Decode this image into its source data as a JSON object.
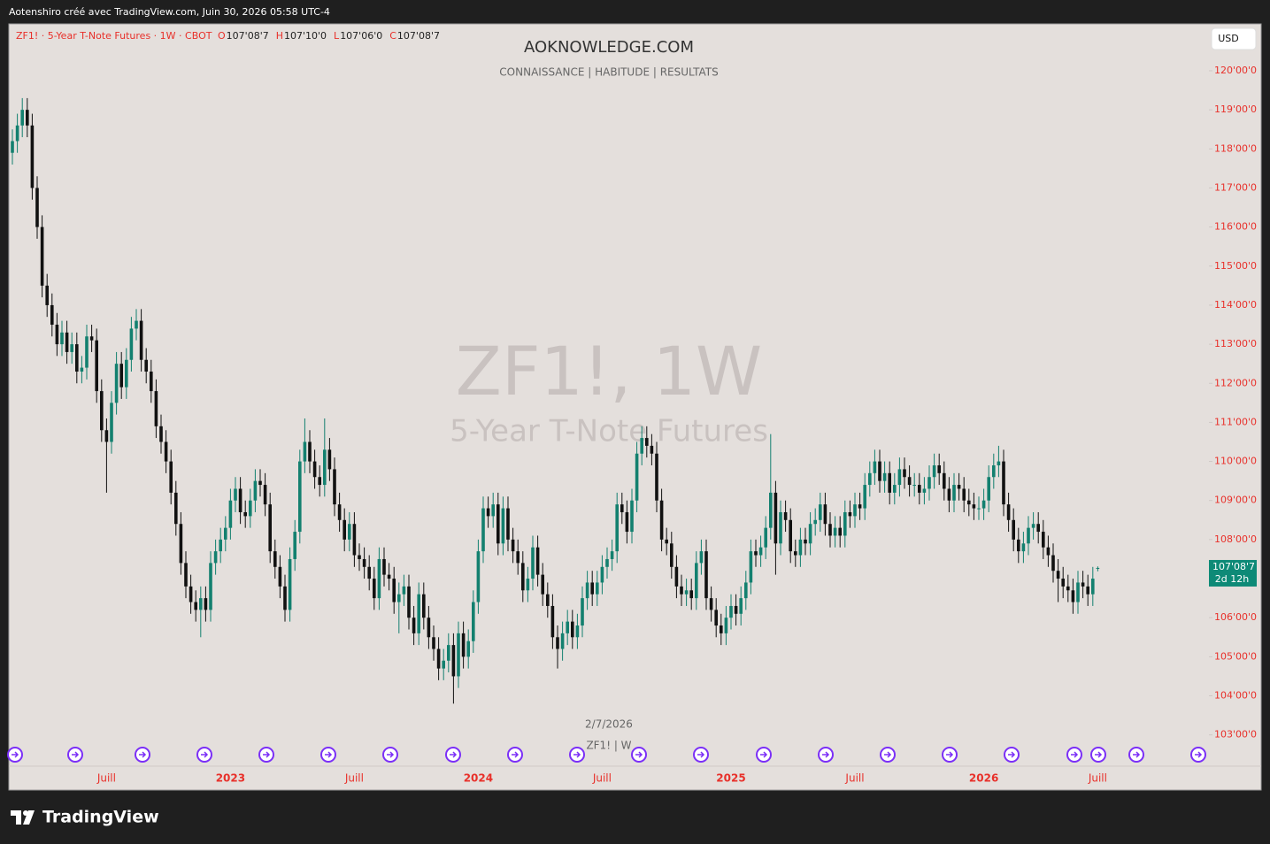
{
  "top_bar": "Aotenshiro créé avec TradingView.com, Juin 30, 2026 05:58 UTC-4",
  "footer_brand": "TradingView",
  "chart_data": {
    "type": "candlestick",
    "title": "AOKNOWLEDGE.COM",
    "subtitle": "CONNAISSANCE |  HABITUDE  |  RESULTATS",
    "symbol_line": "ZF1! · 5-Year T-Note Futures · 1W · CBOT",
    "ohlc_header": [
      {
        "key": "O",
        "value": "107'08'7"
      },
      {
        "key": "H",
        "value": "107'10'0"
      },
      {
        "key": "L",
        "value": "107'06'0"
      },
      {
        "key": "C",
        "value": "107'08'7"
      }
    ],
    "watermark": "ZF1!, 1W",
    "watermark_sub": "5-Year T-Note Futures",
    "currency": "USD",
    "cursor_date": "2/7/2026",
    "cursor_series": "ZF1! | W",
    "current_price_label": "107'08'7",
    "countdown": "2d 12h",
    "up_color": "#13806f",
    "down_color": "#111111",
    "label_color": "#e8302a",
    "ylim": [
      102.2,
      121.2
    ],
    "yticks": [
      {
        "value": 103,
        "label": "103'00'0"
      },
      {
        "value": 104,
        "label": "104'00'0"
      },
      {
        "value": 105,
        "label": "105'00'0"
      },
      {
        "value": 106,
        "label": "106'00'0"
      },
      {
        "value": 107,
        "label": "107'00'0"
      },
      {
        "value": 108,
        "label": "108'00'0"
      },
      {
        "value": 109,
        "label": "109'00'0"
      },
      {
        "value": 110,
        "label": "110'00'0"
      },
      {
        "value": 111,
        "label": "111'00'0"
      },
      {
        "value": 112,
        "label": "112'00'0"
      },
      {
        "value": 113,
        "label": "113'00'0"
      },
      {
        "value": 114,
        "label": "114'00'0"
      },
      {
        "value": 115,
        "label": "115'00'0"
      },
      {
        "value": 116,
        "label": "116'00'0"
      },
      {
        "value": 117,
        "label": "117'00'0"
      },
      {
        "value": 118,
        "label": "118'00'0"
      },
      {
        "value": 119,
        "label": "119'00'0"
      },
      {
        "value": 120,
        "label": "120'00'0"
      }
    ],
    "categories": [
      null,
      null,
      null,
      null,
      null,
      null,
      null,
      null,
      null,
      null,
      null,
      null,
      null,
      null,
      null,
      null,
      null,
      null,
      null,
      "Juill",
      null,
      null,
      null,
      null,
      null,
      null,
      null,
      null,
      null,
      null,
      null,
      null,
      null,
      null,
      null,
      null,
      null,
      null,
      null,
      null,
      null,
      null,
      null,
      null,
      "2023",
      null,
      null,
      null,
      null,
      null,
      null,
      null,
      null,
      null,
      null,
      null,
      null,
      null,
      null,
      null,
      null,
      null,
      null,
      null,
      null,
      null,
      null,
      null,
      null,
      "Juill",
      null,
      null,
      null,
      null,
      null,
      null,
      null,
      null,
      null,
      null,
      null,
      null,
      null,
      null,
      null,
      null,
      null,
      null,
      null,
      null,
      null,
      null,
      null,
      null,
      "2024",
      null,
      null,
      null,
      null,
      null,
      null,
      null,
      null,
      null,
      null,
      null,
      null,
      null,
      null,
      null,
      null,
      null,
      null,
      null,
      null,
      null,
      null,
      null,
      null,
      "Juill",
      null,
      null,
      null,
      null,
      null,
      null,
      null,
      null,
      null,
      null,
      null,
      null,
      null,
      null,
      null,
      null,
      null,
      null,
      null,
      null,
      null,
      null,
      null,
      null,
      null,
      "2025",
      null,
      null,
      null,
      null,
      null,
      null,
      null,
      null,
      null,
      null,
      null,
      null,
      null,
      null,
      null,
      null,
      null,
      null,
      null,
      null,
      null,
      null,
      null,
      null,
      "Juill",
      null,
      null,
      null,
      null,
      null,
      null,
      null,
      null,
      null,
      null,
      null,
      null,
      null,
      null,
      null,
      null,
      null,
      null,
      null,
      null,
      null,
      null,
      null,
      null,
      null,
      "2026",
      null,
      null,
      null,
      null,
      null,
      null,
      null,
      null,
      null,
      null,
      null,
      null,
      null,
      null,
      null,
      null,
      null,
      null,
      null,
      null,
      null,
      null,
      "Juill"
    ],
    "open": [
      117.9,
      118.2,
      118.6,
      119.0,
      118.6,
      117.0,
      116.0,
      114.5,
      114.0,
      113.5,
      113.0,
      113.3,
      112.8,
      113.0,
      112.3,
      112.4,
      113.2,
      113.1,
      111.8,
      110.8,
      110.5,
      111.5,
      112.5,
      111.9,
      112.6,
      113.4,
      113.6,
      112.6,
      112.3,
      111.8,
      110.9,
      110.5,
      110.0,
      109.2,
      108.4,
      107.4,
      106.8,
      106.4,
      106.2,
      106.5,
      106.2,
      107.4,
      107.7,
      108.0,
      108.3,
      109.0,
      109.3,
      108.7,
      108.6,
      109.0,
      109.5,
      109.4,
      108.9,
      107.7,
      107.3,
      106.8,
      106.2,
      107.5,
      108.2,
      110.0,
      110.5,
      110.0,
      109.6,
      109.4,
      110.3,
      109.8,
      108.9,
      108.5,
      108.0,
      108.4,
      107.6,
      107.5,
      107.3,
      107.0,
      106.5,
      107.5,
      107.1,
      107.0,
      106.4,
      106.6,
      106.8,
      106.0,
      105.6,
      106.6,
      106.0,
      105.5,
      105.2,
      104.7,
      104.9,
      105.3,
      104.5,
      105.6,
      105.0,
      105.4,
      106.4,
      107.7,
      108.8,
      108.6,
      108.9,
      107.9,
      108.8,
      108.0,
      107.7,
      107.4,
      106.7,
      107.0,
      107.8,
      107.1,
      106.6,
      106.3,
      105.5,
      105.2,
      105.6,
      105.9,
      105.5,
      105.8,
      106.5,
      106.9,
      106.6,
      106.9,
      107.3,
      107.5,
      107.7,
      108.9,
      108.7,
      108.2,
      109.0,
      110.2,
      110.6,
      110.4,
      110.2,
      109.0,
      108.0,
      107.9,
      107.3,
      106.8,
      106.6,
      106.7,
      106.5,
      107.4,
      107.7,
      106.5,
      106.2,
      105.8,
      105.6,
      106.0,
      106.3,
      106.1,
      106.5,
      106.9,
      107.7,
      107.6,
      107.8,
      108.3,
      109.2,
      107.9,
      108.7,
      108.5,
      107.7,
      107.6,
      108.0,
      107.9,
      108.4,
      108.5,
      108.9,
      108.4,
      108.1,
      108.3,
      108.1,
      108.7,
      108.6,
      108.9,
      108.8,
      109.4,
      109.7,
      110.0,
      109.5,
      109.7,
      109.2,
      109.4,
      109.8,
      109.6,
      109.4,
      109.4,
      109.2,
      109.3,
      109.6,
      109.9,
      109.7,
      109.3,
      109.0,
      109.4,
      109.3,
      109.0,
      108.9,
      108.8,
      108.8,
      109.0,
      109.6,
      109.9,
      110.0,
      108.9,
      108.5,
      108.0,
      107.7,
      107.9,
      108.3,
      108.4,
      108.2,
      107.8,
      107.6,
      107.2,
      107.0,
      106.8,
      106.7,
      106.4,
      106.9,
      106.8,
      106.6,
      107.2734
    ],
    "high": [
      118.5,
      118.9,
      119.3,
      119.3,
      118.9,
      117.3,
      116.3,
      114.8,
      114.3,
      113.8,
      113.6,
      113.6,
      113.3,
      113.3,
      112.7,
      113.5,
      113.5,
      113.4,
      112.1,
      111.1,
      111.8,
      112.8,
      112.8,
      112.9,
      113.7,
      113.9,
      113.9,
      112.9,
      112.6,
      112.1,
      111.2,
      110.8,
      110.3,
      109.5,
      108.7,
      107.7,
      107.1,
      106.7,
      106.8,
      106.8,
      107.7,
      108.0,
      108.3,
      108.6,
      109.3,
      109.6,
      109.6,
      109.0,
      109.3,
      109.8,
      109.8,
      109.7,
      109.2,
      108.0,
      107.6,
      107.1,
      107.8,
      108.5,
      110.3,
      111.1,
      110.8,
      110.3,
      109.9,
      111.1,
      110.6,
      110.1,
      109.2,
      108.8,
      108.7,
      108.7,
      107.9,
      107.8,
      107.6,
      107.3,
      107.8,
      107.8,
      107.4,
      107.3,
      106.9,
      107.1,
      107.1,
      106.3,
      106.9,
      106.9,
      106.3,
      105.8,
      105.5,
      105.2,
      105.6,
      105.6,
      105.9,
      105.9,
      105.7,
      106.7,
      108.0,
      109.1,
      109.1,
      109.2,
      109.2,
      109.1,
      109.1,
      108.3,
      108.0,
      107.7,
      107.3,
      108.1,
      108.1,
      107.4,
      106.9,
      106.6,
      105.8,
      105.9,
      106.2,
      106.2,
      106.1,
      106.8,
      107.2,
      107.2,
      107.2,
      107.6,
      107.8,
      108.0,
      109.2,
      109.2,
      109.0,
      109.3,
      110.5,
      110.9,
      110.9,
      110.7,
      110.5,
      109.3,
      108.3,
      108.2,
      107.6,
      107.1,
      107.0,
      107.0,
      107.7,
      108.0,
      108.0,
      106.8,
      106.5,
      106.1,
      106.3,
      106.6,
      106.6,
      106.8,
      107.2,
      108.0,
      108.0,
      108.1,
      108.6,
      110.7,
      109.5,
      109.0,
      109.0,
      108.8,
      108.0,
      108.3,
      108.3,
      108.7,
      108.8,
      109.2,
      109.2,
      108.7,
      108.6,
      108.6,
      109.0,
      109.0,
      109.2,
      109.2,
      109.7,
      110.0,
      110.3,
      110.3,
      110.0,
      110.0,
      109.7,
      110.1,
      110.1,
      109.9,
      109.7,
      109.7,
      109.6,
      109.9,
      110.2,
      110.2,
      110.0,
      109.6,
      109.7,
      109.7,
      109.6,
      109.3,
      109.2,
      109.1,
      109.3,
      109.9,
      110.2,
      110.4,
      110.3,
      109.2,
      108.8,
      108.3,
      108.2,
      108.6,
      108.7,
      108.7,
      108.5,
      108.1,
      107.9,
      107.5,
      107.3,
      107.1,
      107.0,
      107.2,
      107.2,
      107.1,
      107.3,
      107.3125
    ],
    "low": [
      117.6,
      117.9,
      118.3,
      118.3,
      116.7,
      115.7,
      114.2,
      113.7,
      113.2,
      112.7,
      112.7,
      112.5,
      112.5,
      112.0,
      112.0,
      112.1,
      112.8,
      111.5,
      110.5,
      109.2,
      110.2,
      111.2,
      111.6,
      111.6,
      112.3,
      113.1,
      112.3,
      112.0,
      111.5,
      110.6,
      110.2,
      109.7,
      108.9,
      108.1,
      107.1,
      106.5,
      106.1,
      105.9,
      105.5,
      105.9,
      105.9,
      107.1,
      107.4,
      107.7,
      108.0,
      108.7,
      108.4,
      108.3,
      108.3,
      108.7,
      109.1,
      108.6,
      107.4,
      107.0,
      106.5,
      105.9,
      105.9,
      107.2,
      107.9,
      109.7,
      109.7,
      109.3,
      109.1,
      109.1,
      109.5,
      108.6,
      108.2,
      107.7,
      107.7,
      107.3,
      107.2,
      107.0,
      106.7,
      106.2,
      106.2,
      106.8,
      106.7,
      106.1,
      105.6,
      106.3,
      105.7,
      105.3,
      105.3,
      105.7,
      105.2,
      104.9,
      104.4,
      104.4,
      104.6,
      103.8,
      104.2,
      104.7,
      104.7,
      105.1,
      106.1,
      107.4,
      108.3,
      108.3,
      107.6,
      107.6,
      107.7,
      107.4,
      107.1,
      106.4,
      106.4,
      106.7,
      106.8,
      106.3,
      106.0,
      105.2,
      104.7,
      104.9,
      105.3,
      105.2,
      105.2,
      105.5,
      106.2,
      106.3,
      106.3,
      106.6,
      107.0,
      107.2,
      107.4,
      108.4,
      107.9,
      107.9,
      108.7,
      109.9,
      110.1,
      109.9,
      108.7,
      107.7,
      107.6,
      107.0,
      106.5,
      106.3,
      106.3,
      106.2,
      106.2,
      107.1,
      106.2,
      105.9,
      105.5,
      105.3,
      105.3,
      105.7,
      105.8,
      105.8,
      106.2,
      106.6,
      107.3,
      107.3,
      107.5,
      108.0,
      107.1,
      107.6,
      108.2,
      107.4,
      107.3,
      107.3,
      107.6,
      107.6,
      108.1,
      108.2,
      108.1,
      107.8,
      107.8,
      107.8,
      107.8,
      108.3,
      108.3,
      108.5,
      108.5,
      109.1,
      109.4,
      109.2,
      109.2,
      108.9,
      108.9,
      109.1,
      109.3,
      109.1,
      109.1,
      108.9,
      108.9,
      109.0,
      109.3,
      109.4,
      109.0,
      108.7,
      108.7,
      109.0,
      108.7,
      108.6,
      108.5,
      108.5,
      108.5,
      108.7,
      109.3,
      109.6,
      108.6,
      108.2,
      107.7,
      107.4,
      107.4,
      107.6,
      108.0,
      107.9,
      107.5,
      107.3,
      106.9,
      106.4,
      106.5,
      106.4,
      106.1,
      106.1,
      106.5,
      106.3,
      106.3,
      107.1875
    ],
    "close": [
      118.2,
      118.6,
      119.0,
      118.6,
      117.0,
      116.0,
      114.5,
      114.0,
      113.5,
      113.0,
      113.3,
      112.8,
      113.0,
      112.3,
      112.4,
      113.2,
      113.1,
      111.8,
      110.8,
      110.5,
      111.5,
      112.5,
      111.9,
      112.6,
      113.4,
      113.6,
      112.6,
      112.3,
      111.8,
      110.9,
      110.5,
      110.0,
      109.2,
      108.4,
      107.4,
      106.8,
      106.4,
      106.2,
      106.5,
      106.2,
      107.4,
      107.7,
      108.0,
      108.3,
      109.0,
      109.3,
      108.7,
      108.6,
      109.0,
      109.5,
      109.4,
      108.9,
      107.7,
      107.3,
      106.8,
      106.2,
      107.5,
      108.2,
      110.0,
      110.5,
      110.0,
      109.6,
      109.4,
      110.3,
      109.8,
      108.9,
      108.5,
      108.0,
      108.4,
      107.6,
      107.5,
      107.3,
      107.0,
      106.5,
      107.5,
      107.1,
      107.0,
      106.4,
      106.6,
      106.8,
      106.0,
      105.6,
      106.6,
      106.0,
      105.5,
      105.2,
      104.7,
      104.9,
      105.3,
      104.5,
      105.6,
      105.0,
      105.4,
      106.4,
      107.7,
      108.8,
      108.6,
      108.9,
      107.9,
      108.8,
      108.0,
      107.7,
      107.4,
      106.7,
      107.0,
      107.8,
      107.1,
      106.6,
      106.3,
      105.5,
      105.2,
      105.6,
      105.9,
      105.5,
      105.8,
      106.5,
      106.9,
      106.6,
      106.9,
      107.3,
      107.5,
      107.7,
      108.9,
      108.7,
      108.2,
      109.0,
      110.2,
      110.6,
      110.4,
      110.2,
      109.0,
      108.0,
      107.9,
      107.3,
      106.8,
      106.6,
      106.7,
      106.5,
      107.4,
      107.7,
      106.5,
      106.2,
      105.8,
      105.6,
      106.0,
      106.3,
      106.1,
      106.5,
      106.9,
      107.7,
      107.6,
      107.8,
      108.3,
      109.2,
      107.9,
      108.7,
      108.5,
      107.7,
      107.6,
      108.0,
      107.9,
      108.4,
      108.5,
      108.9,
      108.4,
      108.1,
      108.3,
      108.1,
      108.7,
      108.6,
      108.9,
      108.8,
      109.4,
      109.7,
      110.0,
      109.5,
      109.7,
      109.2,
      109.4,
      109.8,
      109.6,
      109.4,
      109.4,
      109.2,
      109.3,
      109.6,
      109.9,
      109.7,
      109.3,
      109.0,
      109.4,
      109.3,
      109.0,
      108.9,
      108.8,
      108.8,
      109.0,
      109.6,
      109.9,
      110.0,
      108.9,
      108.5,
      108.0,
      107.7,
      107.9,
      108.3,
      108.4,
      108.2,
      107.8,
      107.6,
      107.2,
      107.0,
      106.8,
      106.7,
      106.4,
      106.9,
      106.8,
      106.6,
      107.0,
      107.2734
    ]
  }
}
